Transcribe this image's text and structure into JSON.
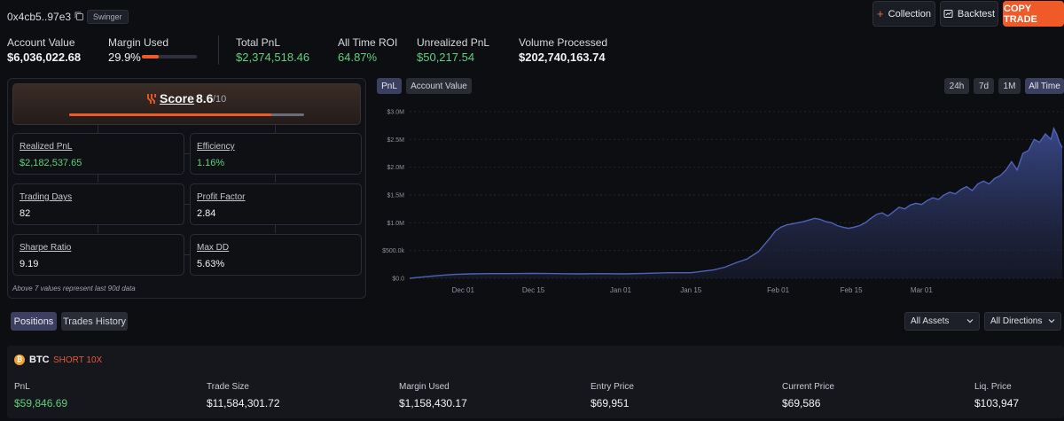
{
  "header": {
    "address": "0x4cb5..97e3",
    "badge": "Swinger",
    "collection_label": "Collection",
    "backtest_label": "Backtest",
    "copy_trade_label": "COPY TRADE"
  },
  "stats": {
    "account_value": {
      "label": "Account Value",
      "value": "$6,036,022.68"
    },
    "margin_used": {
      "label": "Margin Used",
      "value": "29.9%",
      "fraction": 0.299
    },
    "total_pnl": {
      "label": "Total PnL",
      "value": "$2,374,518.46"
    },
    "all_time_roi": {
      "label": "All Time ROI",
      "value": "64.87%"
    },
    "unrealized_pnl": {
      "label": "Unrealized PnL",
      "value": "$50,217.54"
    },
    "volume_processed": {
      "label": "Volume Processed",
      "value": "$202,740,163.74"
    }
  },
  "score": {
    "title": "Score",
    "value": "8.6",
    "max": "/10",
    "fraction": 0.86,
    "metrics": [
      {
        "label": "Realized PnL",
        "value": "$2,182,537.65",
        "positive": true
      },
      {
        "label": "Efficiency",
        "value": "1.16%",
        "positive": true
      },
      {
        "label": "Trading Days",
        "value": "82",
        "positive": false
      },
      {
        "label": "Profit Factor",
        "value": "2.84",
        "positive": false
      },
      {
        "label": "Sharpe Ratio",
        "value": "9.19",
        "positive": false
      },
      {
        "label": "Max DD",
        "value": "5.63%",
        "positive": false
      }
    ],
    "footnote": "Above 7 values represent last 90d data"
  },
  "chart_tabs": {
    "pnl": "PnL",
    "account_value": "Account Value",
    "range_24h": "24h",
    "range_7d": "7d",
    "range_1m": "1M",
    "range_all": "All Time"
  },
  "chart_data": {
    "type": "area",
    "title": "PnL",
    "y_ticks": [
      "$3.0M",
      "$2.5M",
      "$2.0M",
      "$1.5M",
      "$1.0M",
      "$500.0k",
      "$0.0"
    ],
    "x_ticks": [
      "Dec 01",
      "Dec 15",
      "Jan 01",
      "Jan 15",
      "Feb 01",
      "Feb 15",
      "Mar 01"
    ],
    "ylim": [
      0,
      3000000
    ],
    "color": "#4f62b8",
    "series": [
      {
        "name": "PnL",
        "x": [
          0,
          2,
          5,
          8,
          11,
          14,
          18,
          22,
          26,
          30,
          34,
          38,
          42,
          46,
          50,
          54,
          56,
          58,
          60,
          62,
          63,
          64,
          65,
          66,
          67,
          68,
          69,
          70,
          71,
          72,
          73,
          74,
          75,
          76,
          77,
          78,
          79,
          80,
          81,
          82,
          83,
          84,
          85,
          86,
          87,
          88,
          89,
          90,
          91,
          92,
          93,
          94,
          95,
          96,
          97,
          98,
          99,
          100,
          101,
          102,
          103,
          104,
          105,
          106,
          107,
          108,
          109,
          110,
          111,
          112,
          113,
          114,
          114.5,
          115,
          115.5,
          116
        ],
        "values": [
          0,
          20000,
          50000,
          70000,
          80000,
          85000,
          85000,
          90000,
          85000,
          80000,
          85000,
          80000,
          90000,
          100000,
          100000,
          150000,
          200000,
          280000,
          350000,
          480000,
          600000,
          720000,
          850000,
          920000,
          960000,
          980000,
          1000000,
          1020000,
          1050000,
          1080000,
          1060000,
          1020000,
          1000000,
          950000,
          920000,
          900000,
          920000,
          950000,
          1000000,
          1080000,
          1150000,
          1180000,
          1120000,
          1200000,
          1280000,
          1250000,
          1320000,
          1350000,
          1330000,
          1400000,
          1450000,
          1420000,
          1500000,
          1550000,
          1520000,
          1600000,
          1650000,
          1580000,
          1700000,
          1750000,
          1700000,
          1800000,
          1850000,
          1950000,
          2100000,
          1950000,
          2250000,
          2300000,
          2500000,
          2450000,
          2600000,
          2500000,
          2700000,
          2600000,
          2450000,
          2350000
        ],
        "x_min": 0,
        "x_max": 116,
        "x_tick_positions": [
          9.5,
          22,
          37.5,
          50,
          65.5,
          78.5,
          91
        ]
      }
    ]
  },
  "positions": {
    "tab_positions": "Positions",
    "tab_trades_history": "Trades History",
    "filter_assets": "All Assets",
    "filter_directions": "All Directions",
    "asset": "BTC",
    "side": "SHORT 10X",
    "icon_glyph": "₿",
    "fields": [
      {
        "label": "PnL",
        "value": "$59,846.69",
        "positive": true
      },
      {
        "label": "Trade Size",
        "value": "$11,584,301.72",
        "positive": false
      },
      {
        "label": "Margin Used",
        "value": "$1,158,430.17",
        "positive": false
      },
      {
        "label": "Entry Price",
        "value": "$69,951",
        "positive": false
      },
      {
        "label": "Current Price",
        "value": "$69,586",
        "positive": false
      },
      {
        "label": "Liq. Price",
        "value": "$103,947",
        "positive": false
      }
    ]
  }
}
